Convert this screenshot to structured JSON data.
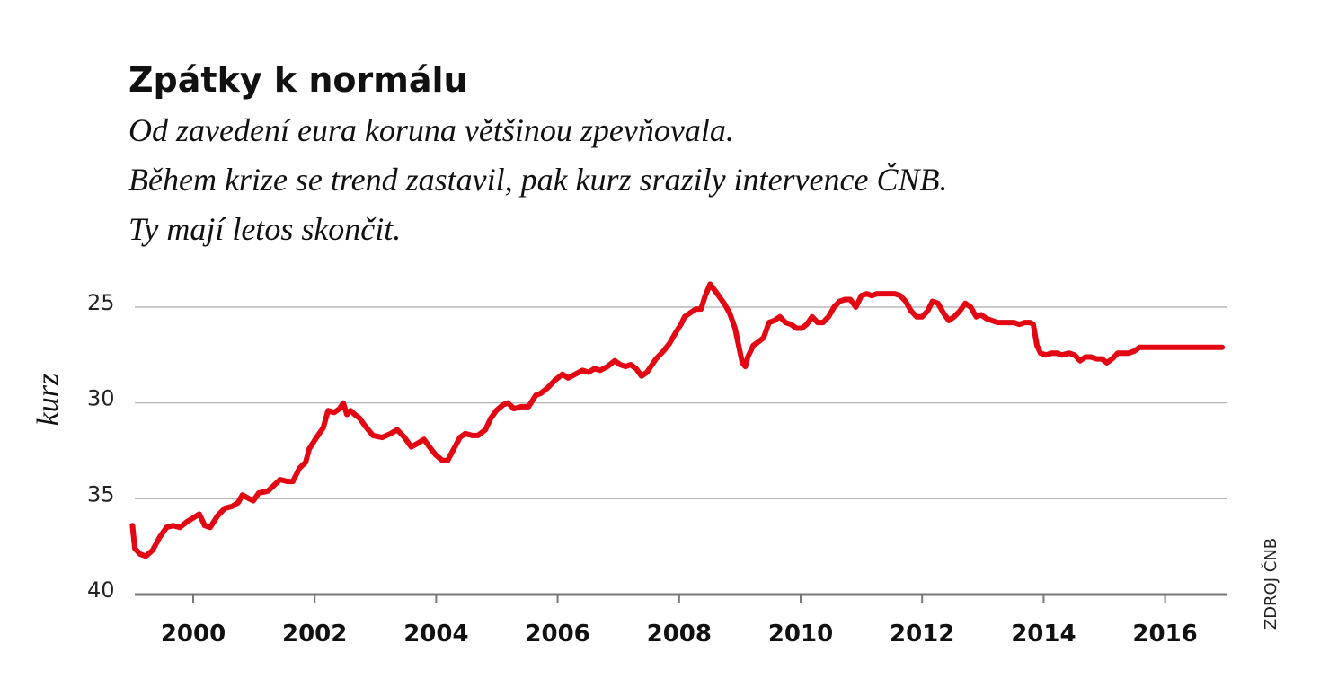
{
  "chart_data": {
    "type": "line",
    "title": "Zpátky k normálu",
    "subtitle": [
      "Od zavedení eura koruna většinou zpevňovala.",
      "Během krize se trend zastavil, pak kurz srazily intervence ČNB.",
      "Ty mají letos skončit."
    ],
    "ylabel": "kurz",
    "source": "ZDROJ ČNB",
    "xlim": [
      1999,
      2017
    ],
    "xticks": [
      2000,
      2002,
      2004,
      2006,
      2008,
      2010,
      2012,
      2014,
      2016
    ],
    "ylim": [
      40,
      23.5
    ],
    "yticks": [
      25,
      30,
      35,
      40
    ],
    "grid": true,
    "series": [
      {
        "name": "kurz",
        "color": "#e30613",
        "x": [
          1999.0,
          1999.04,
          1999.13,
          1999.22,
          1999.33,
          1999.45,
          1999.56,
          1999.67,
          1999.78,
          1999.9,
          2000.0,
          2000.1,
          2000.19,
          2000.28,
          2000.4,
          2000.52,
          2000.64,
          2000.74,
          2000.81,
          2000.92,
          2000.99,
          2001.08,
          2001.23,
          2001.33,
          2001.43,
          2001.55,
          2001.64,
          2001.75,
          2001.85,
          2001.91,
          2002.03,
          2002.14,
          2002.22,
          2002.32,
          2002.41,
          2002.47,
          2002.53,
          2002.59,
          2002.66,
          2002.74,
          2002.83,
          2002.96,
          2003.11,
          2003.25,
          2003.36,
          2003.48,
          2003.59,
          2003.7,
          2003.8,
          2003.89,
          2003.99,
          2004.1,
          2004.19,
          2004.29,
          2004.39,
          2004.48,
          2004.59,
          2004.69,
          2004.81,
          2004.9,
          2004.99,
          2005.1,
          2005.18,
          2005.28,
          2005.4,
          2005.52,
          2005.64,
          2005.72,
          2005.84,
          2005.96,
          2006.08,
          2006.17,
          2006.29,
          2006.41,
          2006.51,
          2006.61,
          2006.7,
          2006.82,
          2006.94,
          2007.03,
          2007.12,
          2007.2,
          2007.29,
          2007.38,
          2007.47,
          2007.62,
          2007.74,
          2007.84,
          2007.95,
          2008.03,
          2008.09,
          2008.18,
          2008.28,
          2008.36,
          2008.43,
          2008.51,
          2008.58,
          2008.65,
          2008.74,
          2008.83,
          2008.92,
          2008.98,
          2009.04,
          2009.09,
          2009.13,
          2009.22,
          2009.31,
          2009.39,
          2009.48,
          2009.57,
          2009.66,
          2009.75,
          2009.84,
          2009.93,
          2010.02,
          2010.1,
          2010.19,
          2010.28,
          2010.37,
          2010.46,
          2010.55,
          2010.64,
          2010.73,
          2010.82,
          2010.91,
          2011.0,
          2011.09,
          2011.17,
          2011.26,
          2011.35,
          2011.46,
          2011.55,
          2011.64,
          2011.73,
          2011.82,
          2011.91,
          2012.0,
          2012.09,
          2012.17,
          2012.26,
          2012.35,
          2012.44,
          2012.53,
          2012.62,
          2012.71,
          2012.8,
          2012.89,
          2012.97,
          2013.06,
          2013.15,
          2013.24,
          2013.33,
          2013.42,
          2013.51,
          2013.6,
          2013.69,
          2013.78,
          2013.83,
          2013.89,
          2013.95,
          2014.04,
          2014.13,
          2014.22,
          2014.3,
          2014.42,
          2014.51,
          2014.6,
          2014.69,
          2014.78,
          2014.87,
          2014.96,
          2015.04,
          2015.13,
          2015.22,
          2015.31,
          2015.4,
          2015.49,
          2015.58,
          2015.67,
          2015.79,
          2015.91,
          2016.05,
          2016.35,
          2016.64,
          2016.94
        ],
        "values": [
          36.4,
          37.6,
          37.9,
          38.0,
          37.7,
          37.0,
          36.5,
          36.4,
          36.5,
          36.2,
          36.0,
          35.8,
          36.4,
          36.5,
          35.9,
          35.5,
          35.4,
          35.2,
          34.8,
          35.0,
          35.1,
          34.7,
          34.6,
          34.3,
          34.0,
          34.1,
          34.1,
          33.4,
          33.1,
          32.4,
          31.8,
          31.3,
          30.4,
          30.5,
          30.3,
          30.0,
          30.6,
          30.4,
          30.6,
          30.8,
          31.2,
          31.7,
          31.8,
          31.6,
          31.4,
          31.8,
          32.3,
          32.1,
          31.9,
          32.3,
          32.7,
          33.0,
          33.0,
          32.4,
          31.8,
          31.6,
          31.7,
          31.7,
          31.4,
          30.8,
          30.4,
          30.1,
          30.0,
          30.3,
          30.2,
          30.2,
          29.6,
          29.5,
          29.2,
          28.8,
          28.5,
          28.7,
          28.5,
          28.3,
          28.4,
          28.2,
          28.3,
          28.1,
          27.8,
          28.0,
          28.1,
          28.0,
          28.2,
          28.6,
          28.4,
          27.7,
          27.3,
          26.9,
          26.3,
          25.9,
          25.5,
          25.3,
          25.1,
          25.1,
          24.4,
          23.8,
          24.1,
          24.4,
          24.8,
          25.3,
          26.1,
          27.0,
          27.9,
          28.1,
          27.6,
          27.0,
          26.8,
          26.6,
          25.8,
          25.7,
          25.5,
          25.8,
          25.9,
          26.1,
          26.1,
          25.9,
          25.5,
          25.8,
          25.8,
          25.5,
          25.0,
          24.7,
          24.6,
          24.6,
          25.0,
          24.4,
          24.3,
          24.4,
          24.3,
          24.3,
          24.3,
          24.3,
          24.4,
          24.7,
          25.2,
          25.5,
          25.5,
          25.2,
          24.7,
          24.8,
          25.3,
          25.7,
          25.5,
          25.2,
          24.8,
          25.0,
          25.5,
          25.4,
          25.6,
          25.7,
          25.8,
          25.8,
          25.8,
          25.8,
          25.9,
          25.8,
          25.8,
          25.9,
          27.0,
          27.4,
          27.5,
          27.4,
          27.4,
          27.5,
          27.4,
          27.5,
          27.8,
          27.6,
          27.6,
          27.7,
          27.7,
          27.9,
          27.7,
          27.4,
          27.4,
          27.4,
          27.3,
          27.1,
          27.1,
          27.1,
          27.1,
          27.1,
          27.1,
          27.1,
          27.1
        ]
      }
    ]
  }
}
